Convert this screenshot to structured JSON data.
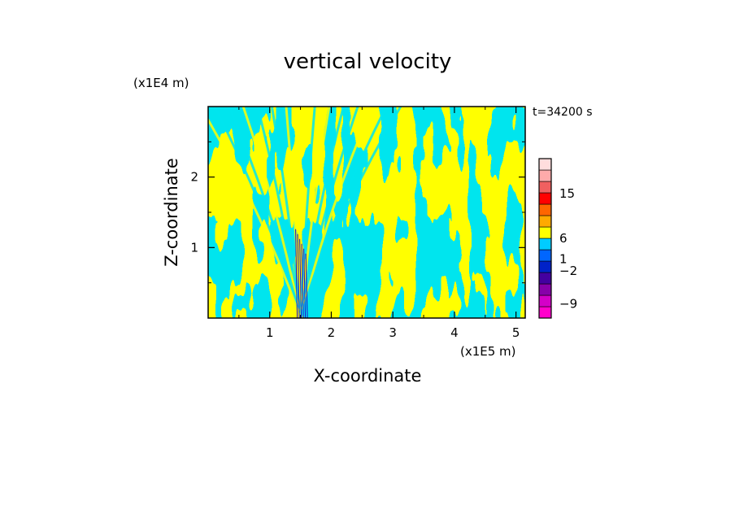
{
  "chart_data": {
    "type": "heatmap",
    "title": "vertical velocity",
    "xlabel": "X-coordinate",
    "ylabel": "Z-coordinate",
    "x_unit": "(x1E5 m)",
    "y_unit": "(x1E4 m)",
    "time_label": "t=34200 s",
    "xlim": [
      0,
      5.15
    ],
    "ylim": [
      0,
      3.0
    ],
    "x_ticks": [
      1,
      2,
      3,
      4,
      5
    ],
    "y_ticks": [
      1,
      2
    ],
    "grid": false,
    "legend_position": "right",
    "colorbar": {
      "tick_labels": [
        "15",
        "6",
        "1",
        "−2",
        "−9"
      ],
      "colors_bottom_to_top": [
        "#ff00cc",
        "#d400c8",
        "#8800aa",
        "#4400a0",
        "#0022c8",
        "#0066ff",
        "#00ccff",
        "#ffff00",
        "#ffaa00",
        "#ff6600",
        "#ff0000",
        "#f06060",
        "#ffaaaa",
        "#ffdddd"
      ]
    },
    "field_colors": {
      "positive": "#ffff00",
      "negative": "#00e5ee",
      "strong_negative": "#2200cc"
    }
  }
}
